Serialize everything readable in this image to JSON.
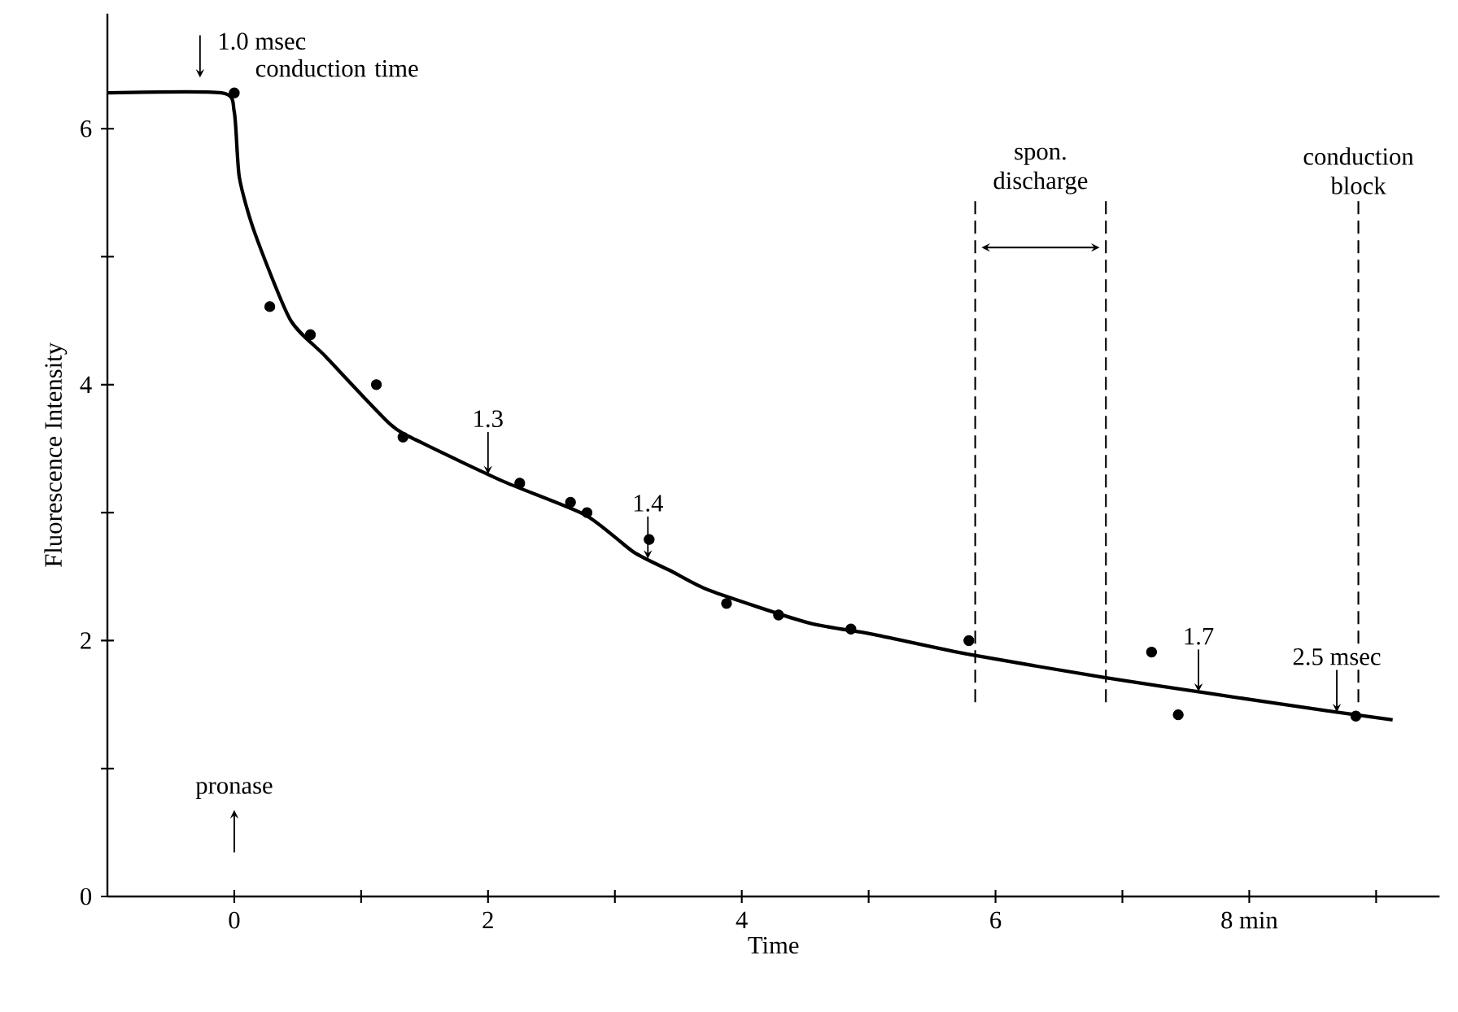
{
  "chart_data": {
    "type": "scatter",
    "xlabel": "Time",
    "ylabel": "Fluorescence Intensity",
    "xlim": [
      -1,
      9.5
    ],
    "ylim": [
      0,
      6.9
    ],
    "xticks": [
      0,
      {
        "value": 1,
        "label": null
      },
      2,
      {
        "value": 3,
        "label": null
      },
      4,
      {
        "value": 5,
        "label": null
      },
      6,
      {
        "value": 7,
        "label": null
      },
      {
        "value": 8,
        "label": "8 min"
      },
      {
        "value": 9,
        "label": null
      }
    ],
    "yticks": [
      0,
      {
        "value": 1,
        "label": null
      },
      2,
      {
        "value": 3,
        "label": null
      },
      4,
      {
        "value": 5,
        "label": null
      },
      6
    ],
    "grid": false,
    "series": [
      {
        "color": "#000000",
        "marker": "circle",
        "x": [
          0,
          0.28,
          0.6,
          1.12,
          1.33,
          2.25,
          2.65,
          2.78,
          3.27,
          3.88,
          4.29,
          4.86,
          5.79,
          7.23,
          7.44,
          8.84
        ],
        "values": [
          6.28,
          4.61,
          4.39,
          4.0,
          3.59,
          3.23,
          3.08,
          3.0,
          2.79,
          2.29,
          2.2,
          2.09,
          2.0,
          1.91,
          1.42,
          1.41
        ]
      },
      {
        "type": "line",
        "color": "#000000",
        "marker": "none",
        "line_style": "solid",
        "x": [
          -1,
          -0.1,
          0,
          0.04,
          0.16,
          0.44,
          0.72,
          1.23,
          1.49,
          2.13,
          2.77,
          3.15,
          3.45,
          3.75,
          4.52,
          5.03,
          5.8,
          6.87,
          7.73,
          8.62,
          9.13
        ],
        "values": [
          6.28,
          6.28,
          6.13,
          5.62,
          5.19,
          4.51,
          4.22,
          3.69,
          3.54,
          3.24,
          2.98,
          2.69,
          2.54,
          2.39,
          2.14,
          2.05,
          1.89,
          1.71,
          1.58,
          1.45,
          1.38
        ]
      }
    ],
    "ref_lines": [
      {
        "axis": "x",
        "value": 5.84,
        "label": "spon. discharge",
        "line_style": "dashed"
      },
      {
        "axis": "x",
        "value": 6.87,
        "line_style": "dashed"
      },
      {
        "axis": "x",
        "value": 8.86,
        "label": "conduction block",
        "line_style": "dashed"
      }
    ],
    "annotations": [
      {
        "text": "1.0 msec",
        "x": -0.27,
        "y": 6.28
      },
      "conduction time",
      {
        "text": "1.3",
        "x": 2.0,
        "y": 3.3
      },
      {
        "text": "1.4",
        "x": 3.26,
        "y": 2.64
      },
      {
        "text": "1.7",
        "x": 7.6,
        "y": 1.6
      },
      {
        "text": "2.5 msec",
        "x": 8.69,
        "y": 1.44
      },
      {
        "text": "pronase",
        "x": 0
      }
    ]
  }
}
